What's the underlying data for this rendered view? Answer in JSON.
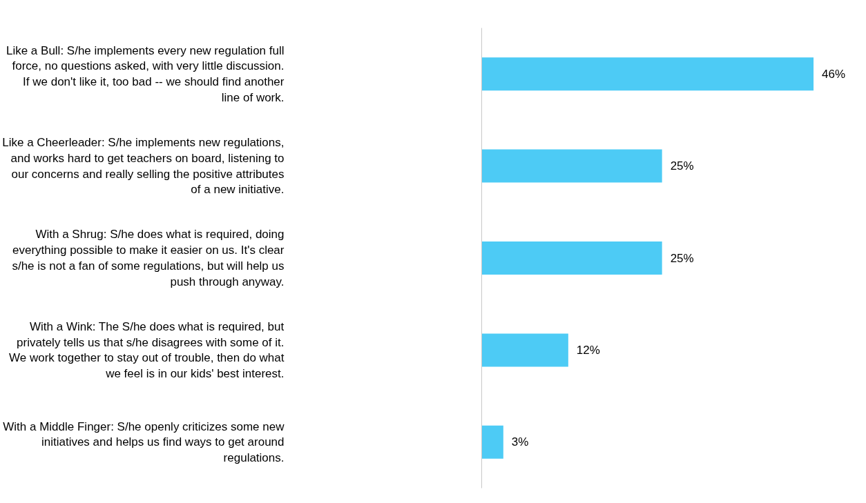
{
  "chart_data": {
    "type": "bar",
    "orientation": "horizontal",
    "categories": [
      "Like a Bull: S/he implements every new regulation full force, no questions asked, with very little discussion. If we don't like it, too bad -- we should find another line of work.",
      "Like a Cheerleader: S/he implements new regulations, and works hard to get teachers on board, listening to our concerns and really selling the positive attributes of a new initiative.",
      "With a Shrug: S/he does what is required, doing everything possible to make it easier on us. It's clear s/he is not a fan of some regulations, but will help us push through anyway.",
      "With a Wink: The S/he does what is required, but privately tells us that s/he disagrees with some of it. We work together to stay out of trouble, then do what we feel is in our kids' best interest.",
      "With a Middle Finger: S/he openly criticizes some new initiatives and helps us find ways to get around regulations."
    ],
    "values": [
      46,
      25,
      25,
      12,
      3
    ],
    "value_labels": [
      "46%",
      "25%",
      "25%",
      "12%",
      "3%"
    ],
    "color": "#4dcbf5",
    "tick_labels": "y",
    "grid": false
  }
}
